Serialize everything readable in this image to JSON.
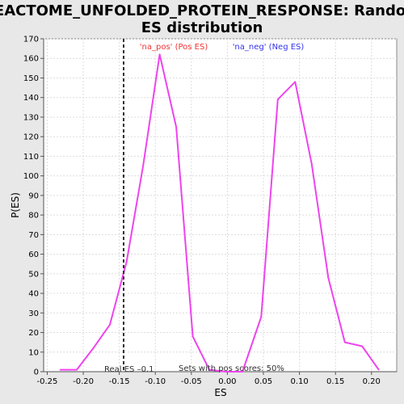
{
  "chart_data": {
    "type": "line",
    "title_lines": [
      "REACTOME_UNFOLDED_PROTEIN_RESPONSE: Random",
      "ES distribution"
    ],
    "xlabel": "ES",
    "ylabel": "P(ES)",
    "xlim": [
      -0.255,
      0.235
    ],
    "ylim": [
      0,
      170
    ],
    "x_ticks": [
      -0.25,
      -0.2,
      -0.15,
      -0.1,
      -0.05,
      0.0,
      0.05,
      0.1,
      0.15,
      0.2
    ],
    "x_tick_labels": [
      "-0.25",
      "-0.20",
      "-0.15",
      "-0.10",
      "-0.05",
      "0.00",
      "0.05",
      "0.10",
      "0.15",
      "0.20"
    ],
    "y_ticks": [
      0,
      10,
      20,
      30,
      40,
      50,
      60,
      70,
      80,
      90,
      100,
      110,
      120,
      130,
      140,
      150,
      160,
      170
    ],
    "grid": true,
    "series": [
      {
        "color": "#ee44ee",
        "x": [
          -0.232,
          -0.209,
          -0.186,
          -0.163,
          -0.14,
          -0.117,
          -0.094,
          -0.071,
          -0.048,
          -0.025,
          -0.002,
          0.021,
          0.047,
          0.07,
          0.094,
          0.117,
          0.14,
          0.163,
          0.187,
          0.21
        ],
        "y": [
          1,
          1,
          12,
          24,
          56,
          105,
          162,
          125,
          18,
          1,
          0,
          0,
          28,
          139,
          148,
          106,
          48,
          15,
          13,
          1
        ]
      }
    ],
    "legend": [
      {
        "label": "'na_pos' (Pos ES)",
        "color": "#ee3333"
      },
      {
        "label": "'na_neg' (Neg ES)",
        "color": "#3333ee"
      }
    ],
    "real_es": {
      "x": -0.144,
      "label": "Real ES –0.1"
    },
    "annotation": "Sets with pos scores: 50%"
  }
}
